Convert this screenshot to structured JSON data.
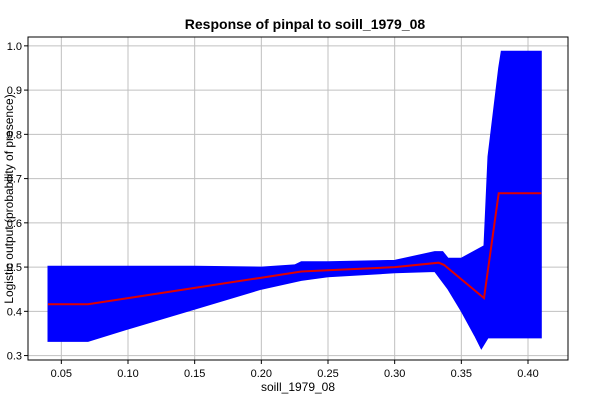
{
  "chart_data": {
    "type": "area",
    "title": "Response of pinpal to soill_1979_08",
    "xlabel": "soill_1979_08",
    "ylabel": "Logistic output (probability of presence)",
    "xlim": [
      0.025,
      0.43
    ],
    "ylim": [
      0.29,
      1.02
    ],
    "xticks": [
      "0.05",
      "0.10",
      "0.15",
      "0.20",
      "0.25",
      "0.30",
      "0.35",
      "0.40"
    ],
    "yticks": [
      "0.3",
      "0.4",
      "0.5",
      "0.6",
      "0.7",
      "0.8",
      "0.9",
      "1.0"
    ],
    "grid": true,
    "colors": {
      "band": "#0000ff",
      "line": "#e00000",
      "grid": "#c0c0c0"
    },
    "series": [
      {
        "role": "upper",
        "x": [
          0.04,
          0.07,
          0.1,
          0.15,
          0.2,
          0.225,
          0.23,
          0.25,
          0.3,
          0.33,
          0.336,
          0.34,
          0.35,
          0.367,
          0.37,
          0.378,
          0.38,
          0.41
        ],
        "values": [
          0.502,
          0.502,
          0.502,
          0.502,
          0.5,
          0.505,
          0.512,
          0.512,
          0.515,
          0.535,
          0.535,
          0.52,
          0.52,
          0.548,
          0.75,
          0.95,
          0.988,
          0.988
        ]
      },
      {
        "role": "mean",
        "x": [
          0.04,
          0.07,
          0.1,
          0.15,
          0.2,
          0.23,
          0.25,
          0.3,
          0.333,
          0.337,
          0.367,
          0.378,
          0.41
        ],
        "values": [
          0.416,
          0.416,
          0.43,
          0.453,
          0.476,
          0.49,
          0.493,
          0.5,
          0.51,
          0.505,
          0.43,
          0.667,
          0.667
        ]
      },
      {
        "role": "lower",
        "x": [
          0.04,
          0.07,
          0.1,
          0.15,
          0.2,
          0.23,
          0.25,
          0.3,
          0.33,
          0.34,
          0.35,
          0.36,
          0.365,
          0.37,
          0.375,
          0.38,
          0.41
        ],
        "values": [
          0.332,
          0.332,
          0.36,
          0.405,
          0.45,
          0.47,
          0.478,
          0.487,
          0.49,
          0.45,
          0.4,
          0.345,
          0.315,
          0.34,
          0.34,
          0.34,
          0.34
        ]
      }
    ]
  }
}
